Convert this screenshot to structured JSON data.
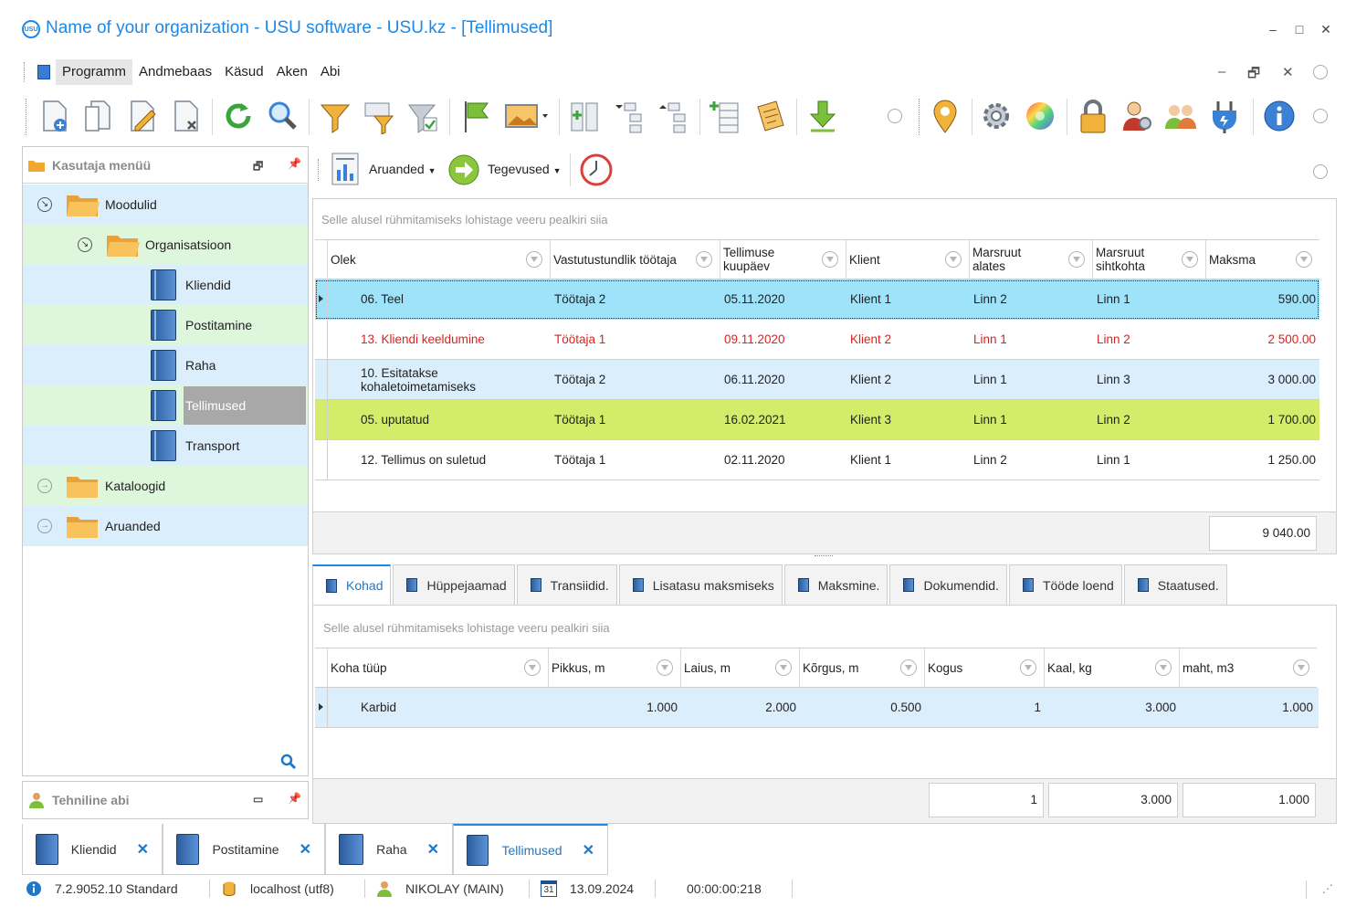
{
  "window": {
    "title": "Name of your organization - USU software - USU.kz - [Tellimused]",
    "logo_text": "USU",
    "controls": {
      "minimize": "–",
      "maximize": "□",
      "close": "✕"
    }
  },
  "menu": {
    "items": [
      "Programm",
      "Andmebaas",
      "Käsud",
      "Aken",
      "Abi"
    ],
    "mdi": {
      "minimize": "–",
      "restore": "🗗",
      "close": "✕"
    }
  },
  "left_panel": {
    "title": "Kasutaja menüü",
    "tree": [
      {
        "label": "Moodulid"
      },
      {
        "label": "Organisatsioon"
      },
      {
        "label": "Kliendid"
      },
      {
        "label": "Postitamine"
      },
      {
        "label": "Raha"
      },
      {
        "label": "Tellimused"
      },
      {
        "label": "Transport"
      },
      {
        "label": "Kataloogid"
      },
      {
        "label": "Aruanded"
      }
    ],
    "bottom_title": "Tehniline abi"
  },
  "main_toolbar": {
    "reports_label": "Aruanded",
    "actions_label": "Tegevused"
  },
  "orders": {
    "group_hint": "Selle alusel rühmitamiseks lohistage veeru pealkiri siia",
    "columns": [
      "Olek",
      "Vastutustundlik töötaja",
      "Tellimuse kuupäev",
      "Klient",
      "Marsruut alates",
      "Marsruut sihtkohta",
      "Maksma"
    ],
    "rows": [
      {
        "status": "06. Teel",
        "worker": "Töötaja 2",
        "date": "05.11.2020",
        "client": "Klient 1",
        "from": "Linn 2",
        "to": "Linn 1",
        "pay": "590.00"
      },
      {
        "status": "13. Kliendi keeldumine",
        "worker": "Töötaja 1",
        "date": "09.11.2020",
        "client": "Klient 2",
        "from": "Linn 1",
        "to": "Linn 2",
        "pay": "2 500.00"
      },
      {
        "status": "10. Esitatakse kohaletoimetamiseks",
        "worker": "Töötaja 2",
        "date": "06.11.2020",
        "client": "Klient 2",
        "from": "Linn 1",
        "to": "Linn 3",
        "pay": "3 000.00"
      },
      {
        "status": "05. uputatud",
        "worker": "Töötaja 1",
        "date": "16.02.2021",
        "client": "Klient 3",
        "from": "Linn 1",
        "to": "Linn 2",
        "pay": "1 700.00"
      },
      {
        "status": "12. Tellimus on suletud",
        "worker": "Töötaja 1",
        "date": "02.11.2020",
        "client": "Klient 1",
        "from": "Linn 2",
        "to": "Linn 1",
        "pay": "1 250.00"
      }
    ],
    "total": "9 040.00"
  },
  "detail_tabs": [
    "Kohad",
    "Hüppejaamad",
    "Transiidid.",
    "Lisatasu maksmiseks",
    "Maksmine.",
    "Dokumendid.",
    "Tööde loend",
    "Staatused."
  ],
  "places": {
    "group_hint": "Selle alusel rühmitamiseks lohistage veeru pealkiri siia",
    "columns": [
      "Koha tüüp",
      "Pikkus, m",
      "Laius, m",
      "Kõrgus, m",
      "Kogus",
      "Kaal, kg",
      "maht, m3"
    ],
    "rows": [
      {
        "type": "Karbid",
        "length": "1.000",
        "width": "2.000",
        "height": "0.500",
        "qty": "1",
        "weight": "3.000",
        "volume": "1.000"
      }
    ],
    "totals": {
      "qty": "1",
      "weight": "3.000",
      "volume": "1.000"
    }
  },
  "doc_tabs": [
    {
      "label": "Kliendid",
      "close": "✕"
    },
    {
      "label": "Postitamine",
      "close": "✕"
    },
    {
      "label": "Raha",
      "close": "✕"
    },
    {
      "label": "Tellimused",
      "close": "✕"
    }
  ],
  "status_bar": {
    "version": "7.2.9052.10 Standard",
    "db": "localhost (utf8)",
    "user": "NIKOLAY (MAIN)",
    "calendar_day": "31",
    "date": "13.09.2024",
    "timer": "00:00:00:218"
  },
  "colors": {
    "accent": "#1e88e5",
    "row_selected": "#9fe3fa",
    "row_alt": "#dbeefc",
    "row_green": "#d4ec6a",
    "refusal_red": "#e0201b"
  }
}
